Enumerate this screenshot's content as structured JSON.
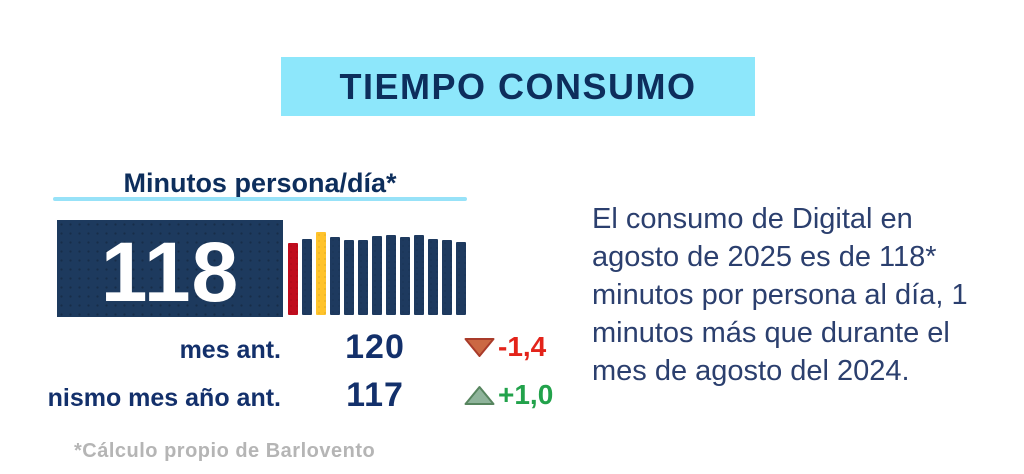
{
  "header": {
    "title": "TIEMPO CONSUMO",
    "banner_bg": "#8DE7FB",
    "title_color": "#0D2E5C"
  },
  "metric": {
    "title": "Minutos persona/día*",
    "big_value": "118",
    "rows": [
      {
        "label": "mes ant.",
        "value": "120",
        "delta": "-1,4",
        "direction": "down"
      },
      {
        "label": "nismo mes año ant.",
        "value": "117",
        "delta": "+1,0",
        "direction": "up"
      }
    ]
  },
  "summary": {
    "text": "El consumo de Digital en\nagosto de 2025 es de 118*\nminutos por persona al día, 1\nminutos más que durante el\nmes de agosto del 2024."
  },
  "footnote": {
    "text": "*Cálculo propio de Barlovento"
  },
  "colors": {
    "navy_box": "#1D3A5E",
    "bar_navy": "#1E3A5F",
    "bar_red": "#C00D1E",
    "bar_yellow": "#FFC32B",
    "delta_down_text": "#E3231A",
    "delta_up_text": "#22A24B",
    "triangle_down_fill": "#CB6843",
    "triangle_down_stroke": "#A93B2A",
    "triangle_up_fill": "#8FB49B",
    "triangle_up_stroke": "#57855F",
    "underline": "#97E2F8",
    "footnote_gray": "#B5B5B5"
  },
  "chart_data": {
    "type": "bar",
    "title": "Minutos persona/día*",
    "note": "Unlabeled 13-bar monthly sparkline; values estimated from bar heights. First bar (red) = same month previous year (117), last bar = current month (118), previous month = 120, yellow bar = peak month.",
    "values": [
      117,
      121,
      128,
      123,
      120,
      120,
      124,
      125,
      123,
      125,
      121,
      120,
      118
    ],
    "bar_colors": [
      "#C00D1E",
      "#1E3A5F",
      "#FFC32B",
      "#1E3A5F",
      "#1E3A5F",
      "#1E3A5F",
      "#1E3A5F",
      "#1E3A5F",
      "#1E3A5F",
      "#1E3A5F",
      "#1E3A5F",
      "#1E3A5F",
      "#1E3A5F"
    ],
    "ylim": [
      45,
      130
    ],
    "grid": false,
    "legend": false,
    "key_figures": {
      "current": 118,
      "previous_month": 120,
      "previous_month_delta": "-1,4",
      "same_month_last_year": 117,
      "same_month_last_year_delta": "+1,0"
    }
  }
}
